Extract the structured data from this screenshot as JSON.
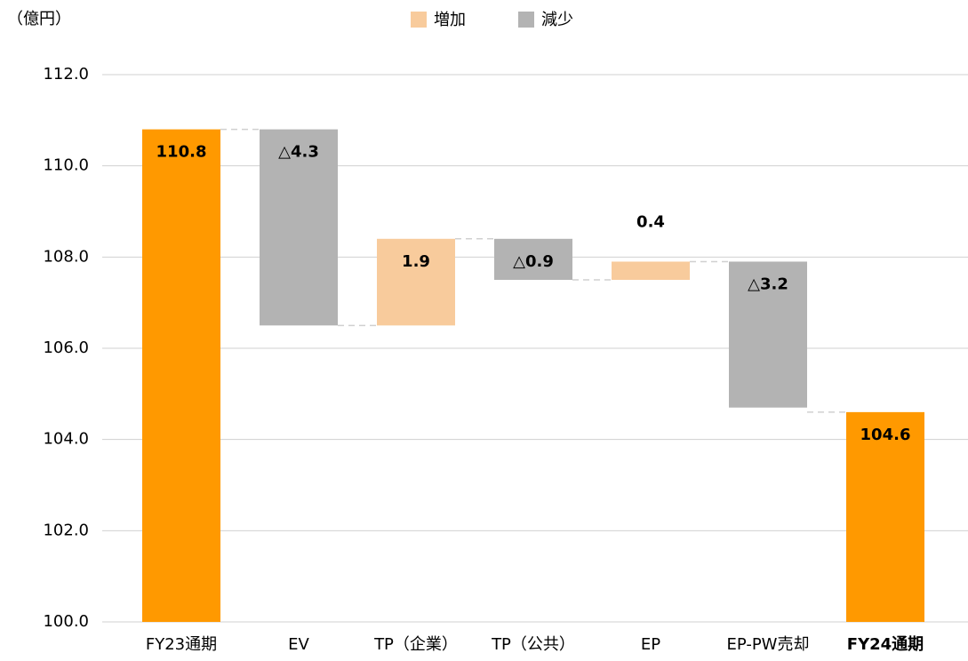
{
  "chart_data": {
    "type": "waterfall",
    "unit_label": "（億円）",
    "categories": [
      "FY23通期",
      "EV",
      "TP（企業）",
      "TP（公共）",
      "EP",
      "EP-PW売却",
      "FY24通期"
    ],
    "values": [
      110.8,
      -4.3,
      1.9,
      -0.9,
      0.4,
      -3.2,
      104.6
    ],
    "value_labels": [
      "110.8",
      "△4.3",
      "1.9",
      "△0.9",
      "0.4",
      "△3.2",
      "104.6"
    ],
    "total_indices": [
      0,
      6
    ],
    "total_color": "#ff9900",
    "series": [
      {
        "name": "増加",
        "color": "#f8cb9c"
      },
      {
        "name": "減少",
        "color": "#b3b3b3"
      }
    ],
    "ylim": [
      100,
      112
    ],
    "yticks": [
      {
        "value": 100,
        "label": "100.0"
      },
      {
        "value": 102,
        "label": "102.0"
      },
      {
        "value": 104,
        "label": "104.0"
      },
      {
        "value": 106,
        "label": "106.0"
      },
      {
        "value": 108,
        "label": "108.0"
      },
      {
        "value": 110,
        "label": "110.0"
      },
      {
        "value": 112,
        "label": "112.0"
      }
    ],
    "grid": true
  }
}
